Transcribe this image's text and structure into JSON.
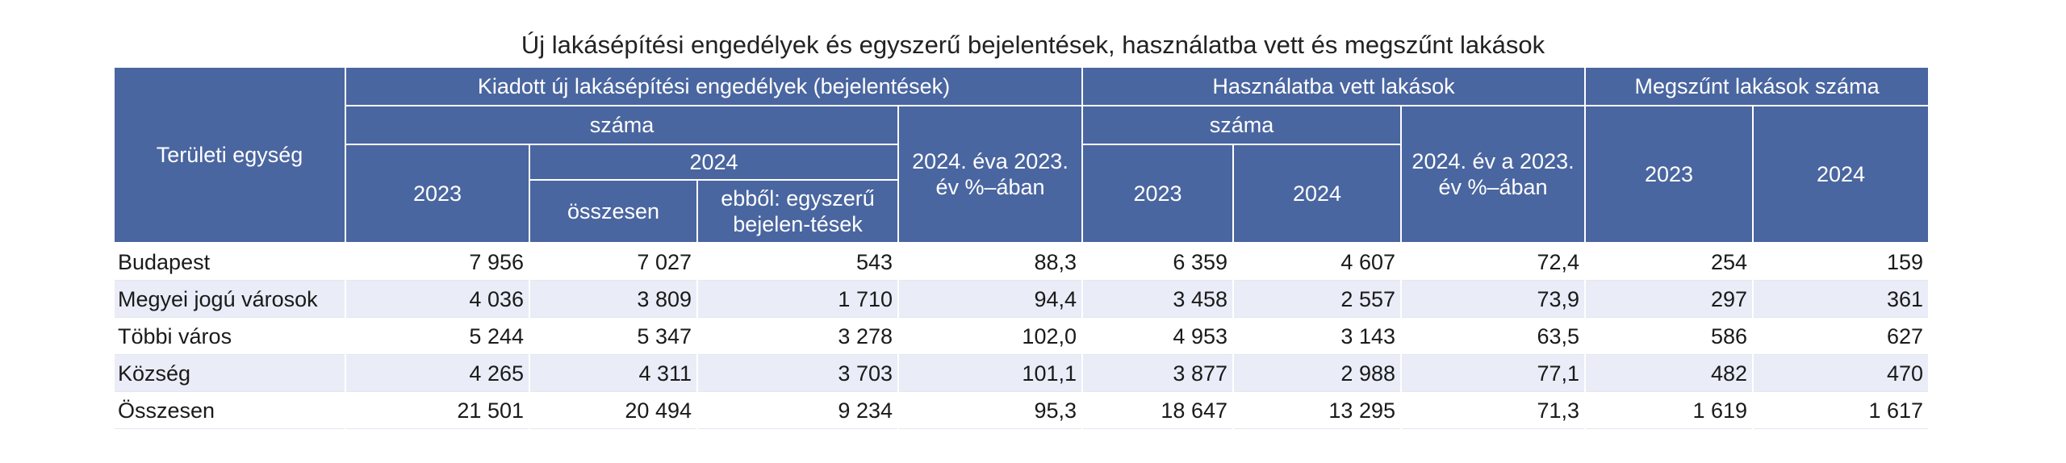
{
  "title": "Új lakásépítési engedélyek és egyszerű bejelentések, használatba vett és megszűnt lakások",
  "header": {
    "area": "Területi egység",
    "permits_group": "Kiadott új lakásépítési engedélyek (bejelentések)",
    "used_group": "Használatba vett lakások",
    "ceased_group": "Megszűnt lakások száma",
    "permits_count": "száma",
    "used_count": "száma",
    "permits_pct": "2024. éva 2023. év %–ában",
    "used_pct": "2024. év a 2023. év %–ában",
    "y2023": "2023",
    "y2024": "2024",
    "total": "összesen",
    "simple": "ebből: egyszerű bejelen-tések"
  },
  "rows": [
    {
      "name": "Budapest",
      "p2023": "7 956",
      "p2024_total": "7 027",
      "p2024_simple": "543",
      "p_pct": "88,3",
      "u2023": "6 359",
      "u2024": "4 607",
      "u_pct": "72,4",
      "c2023": "254",
      "c2024": "159"
    },
    {
      "name": "Megyei jogú városok",
      "p2023": "4 036",
      "p2024_total": "3 809",
      "p2024_simple": "1 710",
      "p_pct": "94,4",
      "u2023": "3 458",
      "u2024": "2 557",
      "u_pct": "73,9",
      "c2023": "297",
      "c2024": "361"
    },
    {
      "name": "Többi város",
      "p2023": "5 244",
      "p2024_total": "5 347",
      "p2024_simple": "3 278",
      "p_pct": "102,0",
      "u2023": "4 953",
      "u2024": "3 143",
      "u_pct": "63,5",
      "c2023": "586",
      "c2024": "627"
    },
    {
      "name": "Község",
      "p2023": "4 265",
      "p2024_total": "4 311",
      "p2024_simple": "3 703",
      "p_pct": "101,1",
      "u2023": "3 877",
      "u2024": "2 988",
      "u_pct": "77,1",
      "c2023": "482",
      "c2024": "470"
    },
    {
      "name": "Összesen",
      "p2023": "21 501",
      "p2024_total": "20 494",
      "p2024_simple": "9 234",
      "p_pct": "95,3",
      "u2023": "18 647",
      "u2024": "13 295",
      "u_pct": "71,3",
      "c2023": "1 619",
      "c2024": "1 617"
    }
  ],
  "colors": {
    "header_bg": "#4a66a0",
    "header_text": "#ffffff",
    "stripe": "#eaedf7"
  }
}
